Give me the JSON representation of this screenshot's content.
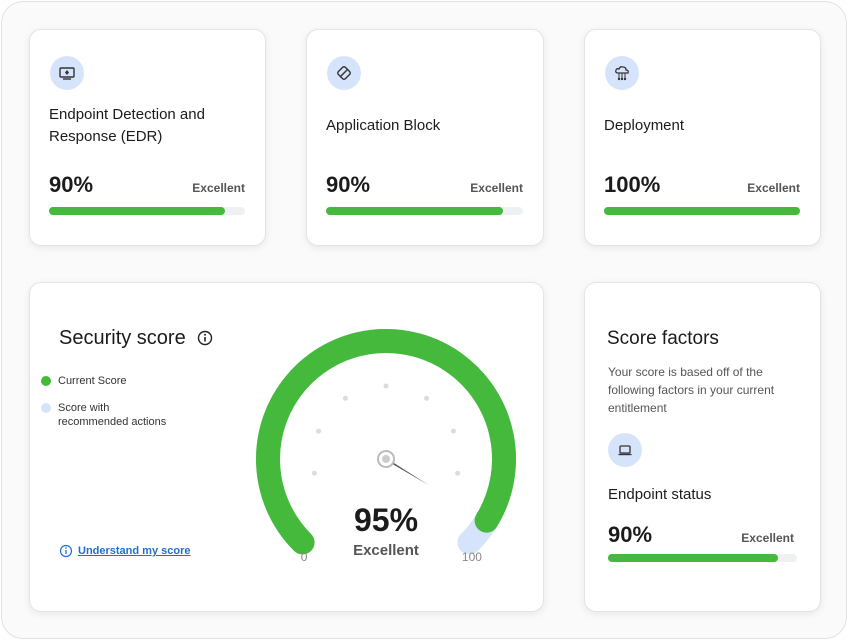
{
  "cards": [
    {
      "title": "Endpoint Detection and Response (EDR)",
      "score": {
        "value": 90,
        "label": "90%"
      },
      "status": "Excellent"
    },
    {
      "title": "Application Block",
      "score": {
        "value": 90,
        "label": "90%"
      },
      "status": "Excellent"
    },
    {
      "title": "Deployment",
      "score": {
        "value": 100,
        "label": "100%"
      },
      "status": "Excellent"
    }
  ],
  "security_score": {
    "title": "Security score",
    "legend": [
      "Current Score",
      "Score with recommended actions"
    ],
    "link": "Understand my score",
    "score": {
      "value": 95,
      "label": "95%"
    },
    "status": "Excellent",
    "min": 0,
    "max": 100
  },
  "score_factors": {
    "title": "Score factors",
    "description": "Your score is based off of the following factors in your current entitlement",
    "item": {
      "title": "Endpoint status",
      "score": {
        "value": 90,
        "label": "90%"
      },
      "status": "Excellent"
    }
  }
}
